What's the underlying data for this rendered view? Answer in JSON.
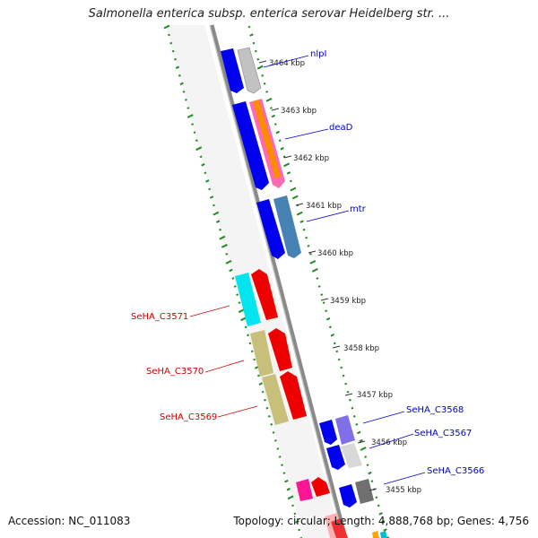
{
  "title": "Salmonella enterica subsp. enterica serovar Heidelberg str. ...",
  "footer": {
    "accession": "Accession: NC_011083",
    "topology": "Topology: circular; Length: 4,888,768 bp; Genes: 4,756"
  },
  "kbp_ticks": [
    "3464 kbp",
    "3463 kbp",
    "3462 kbp",
    "3461 kbp",
    "3460 kbp",
    "3459 kbp",
    "3458 kbp",
    "3457 kbp",
    "3456 kbp",
    "3455 kbp"
  ],
  "gene_labels": [
    {
      "text": "nlpI",
      "color": "#0000cc"
    },
    {
      "text": "deaD",
      "color": "#0000cc"
    },
    {
      "text": "mtr",
      "color": "#0000cc"
    },
    {
      "text": "SeHA_C3571",
      "color": "#cc0000"
    },
    {
      "text": "SeHA_C3570",
      "color": "#cc0000"
    },
    {
      "text": "SeHA_C3569",
      "color": "#cc0000"
    },
    {
      "text": "SeHA_C3568",
      "color": "#0000cc"
    },
    {
      "text": "SeHA_C3567",
      "color": "#0000cc"
    },
    {
      "text": "SeHA_C3566",
      "color": "#0000cc"
    }
  ],
  "colors": {
    "backbone": "#8a8a8a",
    "gc_ticks": "#228b22",
    "forward_strand": "#0000ee",
    "reverse_strand": "#ff0000"
  }
}
